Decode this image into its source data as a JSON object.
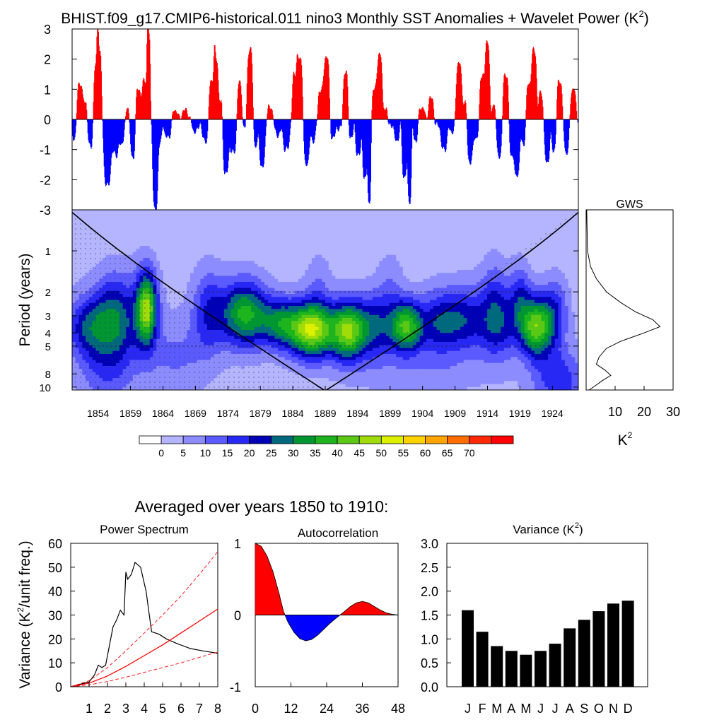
{
  "figure": {
    "title": "BHIST.f09_g17.CMIP6-historical.011 nino3 Monthly SST Anomalies + Wavelet Power (K",
    "title_sup": "2",
    "title_close": ")",
    "avg_heading": "Averaged over years 1850 to 1910:"
  },
  "chart_data": [
    {
      "id": "anomaly",
      "type": "area",
      "title": "",
      "ylim": [
        -3,
        3
      ],
      "yticks": [
        "3",
        "2",
        "1",
        "0",
        "-1",
        "-2",
        "-3"
      ],
      "colors": {
        "positive": "#ff0000",
        "negative": "#0000ff"
      },
      "x_start": 1850.0,
      "x_end": 1928.0,
      "events": [
        {
          "t": 1850.3,
          "a": -0.6,
          "w": 0.4
        },
        {
          "t": 1851.2,
          "a": 1.2,
          "w": 0.5
        },
        {
          "t": 1852.0,
          "a": 0.6,
          "w": 0.3
        },
        {
          "t": 1852.8,
          "a": -0.9,
          "w": 0.4
        },
        {
          "t": 1853.7,
          "a": 1.8,
          "w": 0.4
        },
        {
          "t": 1854.2,
          "a": 2.2,
          "w": 0.4
        },
        {
          "t": 1855.4,
          "a": -2.2,
          "w": 0.6
        },
        {
          "t": 1856.5,
          "a": -1.1,
          "w": 0.6
        },
        {
          "t": 1857.5,
          "a": -0.8,
          "w": 0.6
        },
        {
          "t": 1858.7,
          "a": 0.5,
          "w": 0.4
        },
        {
          "t": 1859.3,
          "a": -1.3,
          "w": 0.5
        },
        {
          "t": 1860.2,
          "a": 1.0,
          "w": 0.5
        },
        {
          "t": 1861.2,
          "a": 1.3,
          "w": 0.5
        },
        {
          "t": 1861.8,
          "a": 2.8,
          "w": 0.3
        },
        {
          "t": 1862.8,
          "a": -3.0,
          "w": 0.45
        },
        {
          "t": 1863.5,
          "a": -0.8,
          "w": 0.4
        },
        {
          "t": 1864.7,
          "a": -0.6,
          "w": 0.6
        },
        {
          "t": 1865.9,
          "a": 0.3,
          "w": 0.5
        },
        {
          "t": 1867.4,
          "a": 0.3,
          "w": 0.6
        },
        {
          "t": 1869.0,
          "a": -0.4,
          "w": 0.6
        },
        {
          "t": 1870.5,
          "a": -0.7,
          "w": 0.6
        },
        {
          "t": 1871.5,
          "a": 1.3,
          "w": 0.5
        },
        {
          "t": 1872.2,
          "a": 2.0,
          "w": 0.4
        },
        {
          "t": 1872.9,
          "a": 0.6,
          "w": 0.3
        },
        {
          "t": 1873.7,
          "a": -1.8,
          "w": 0.5
        },
        {
          "t": 1874.8,
          "a": -1.1,
          "w": 0.6
        },
        {
          "t": 1875.8,
          "a": 1.2,
          "w": 0.45
        },
        {
          "t": 1876.5,
          "a": -0.3,
          "w": 0.4
        },
        {
          "t": 1877.4,
          "a": 2.3,
          "w": 0.5
        },
        {
          "t": 1878.3,
          "a": -0.9,
          "w": 0.4
        },
        {
          "t": 1879.3,
          "a": -1.6,
          "w": 0.5
        },
        {
          "t": 1880.5,
          "a": 0.4,
          "w": 0.5
        },
        {
          "t": 1881.7,
          "a": -0.5,
          "w": 0.6
        },
        {
          "t": 1883.0,
          "a": -1.0,
          "w": 0.6
        },
        {
          "t": 1884.3,
          "a": 1.5,
          "w": 0.45
        },
        {
          "t": 1885.1,
          "a": 2.0,
          "w": 0.5
        },
        {
          "t": 1886.1,
          "a": -1.5,
          "w": 0.5
        },
        {
          "t": 1887.1,
          "a": -0.7,
          "w": 0.5
        },
        {
          "t": 1888.3,
          "a": 1.0,
          "w": 0.45
        },
        {
          "t": 1889.2,
          "a": 2.1,
          "w": 0.5
        },
        {
          "t": 1890.2,
          "a": -0.6,
          "w": 0.5
        },
        {
          "t": 1891.3,
          "a": -0.3,
          "w": 0.6
        },
        {
          "t": 1892.1,
          "a": 1.6,
          "w": 0.45
        },
        {
          "t": 1893.0,
          "a": -0.6,
          "w": 0.4
        },
        {
          "t": 1894.1,
          "a": -1.2,
          "w": 0.5
        },
        {
          "t": 1895.1,
          "a": -2.0,
          "w": 0.4
        },
        {
          "t": 1895.8,
          "a": -2.8,
          "w": 0.3
        },
        {
          "t": 1896.6,
          "a": 1.1,
          "w": 0.4
        },
        {
          "t": 1897.4,
          "a": 2.2,
          "w": 0.45
        },
        {
          "t": 1898.3,
          "a": 0.4,
          "w": 0.35
        },
        {
          "t": 1899.0,
          "a": -0.2,
          "w": 0.4
        },
        {
          "t": 1900.0,
          "a": -0.7,
          "w": 0.5
        },
        {
          "t": 1901.2,
          "a": -1.9,
          "w": 0.45
        },
        {
          "t": 1902.0,
          "a": -2.7,
          "w": 0.35
        },
        {
          "t": 1902.9,
          "a": -0.7,
          "w": 0.4
        },
        {
          "t": 1903.9,
          "a": 0.4,
          "w": 0.5
        },
        {
          "t": 1905.3,
          "a": 0.7,
          "w": 0.5
        },
        {
          "t": 1906.2,
          "a": -0.2,
          "w": 0.4
        },
        {
          "t": 1907.3,
          "a": -1.0,
          "w": 0.6
        },
        {
          "t": 1908.5,
          "a": -0.4,
          "w": 0.5
        },
        {
          "t": 1909.6,
          "a": 1.9,
          "w": 0.5
        },
        {
          "t": 1910.5,
          "a": 0.6,
          "w": 0.4
        },
        {
          "t": 1911.3,
          "a": -1.4,
          "w": 0.5
        },
        {
          "t": 1912.2,
          "a": -0.6,
          "w": 0.5
        },
        {
          "t": 1913.2,
          "a": 1.5,
          "w": 0.45
        },
        {
          "t": 1914.0,
          "a": 2.6,
          "w": 0.4
        },
        {
          "t": 1915.0,
          "a": 0.5,
          "w": 0.4
        },
        {
          "t": 1915.8,
          "a": -1.2,
          "w": 0.5
        },
        {
          "t": 1916.8,
          "a": 1.5,
          "w": 0.5
        },
        {
          "t": 1917.8,
          "a": -1.2,
          "w": 0.5
        },
        {
          "t": 1918.6,
          "a": -1.8,
          "w": 0.45
        },
        {
          "t": 1919.5,
          "a": -0.8,
          "w": 0.4
        },
        {
          "t": 1920.4,
          "a": 1.2,
          "w": 0.45
        },
        {
          "t": 1921.2,
          "a": 2.3,
          "w": 0.45
        },
        {
          "t": 1922.2,
          "a": 0.9,
          "w": 0.4
        },
        {
          "t": 1923.2,
          "a": -1.4,
          "w": 0.5
        },
        {
          "t": 1924.2,
          "a": -1.0,
          "w": 0.4
        },
        {
          "t": 1925.1,
          "a": 1.3,
          "w": 0.45
        },
        {
          "t": 1926.2,
          "a": -1.1,
          "w": 0.45
        },
        {
          "t": 1927.2,
          "a": 1.0,
          "w": 0.5
        }
      ]
    },
    {
      "id": "wavelet",
      "type": "heatmap",
      "ylabel": "Period (years)",
      "xticks": [
        "1854",
        "1859",
        "1864",
        "1869",
        "1874",
        "1879",
        "1884",
        "1889",
        "1894",
        "1899",
        "1904",
        "1909",
        "1914",
        "1919",
        "1924"
      ],
      "yticks": [
        {
          "period": 1,
          "label": "1"
        },
        {
          "period": 2,
          "label": "2"
        },
        {
          "period": 3,
          "label": "3"
        },
        {
          "period": 4,
          "label": "4"
        },
        {
          "period": 5,
          "label": "5"
        },
        {
          "period": 8,
          "label": "8"
        },
        {
          "period": 10,
          "label": "10"
        }
      ],
      "x_start": 1850.0,
      "x_end": 1928.0,
      "period_range": [
        0.5,
        10.5
      ],
      "dashed_periods": [
        2,
        5
      ],
      "blobs": [
        {
          "t": 1861.5,
          "p": 2.6,
          "st": 1.6,
          "sp": 0.22,
          "a": 40
        },
        {
          "t": 1856.0,
          "p": 2.9,
          "st": 3.0,
          "sp": 0.22,
          "a": 14
        },
        {
          "t": 1852.0,
          "p": 3.6,
          "st": 3.0,
          "sp": 0.18,
          "a": 17
        },
        {
          "t": 1858.0,
          "p": 3.3,
          "st": 4.0,
          "sp": 0.3,
          "a": 12
        },
        {
          "t": 1876.5,
          "p": 2.9,
          "st": 3.5,
          "sp": 0.2,
          "a": 34
        },
        {
          "t": 1871.0,
          "p": 2.8,
          "st": 2.5,
          "sp": 0.25,
          "a": 16
        },
        {
          "t": 1882.0,
          "p": 3.4,
          "st": 3.0,
          "sp": 0.15,
          "a": 25
        },
        {
          "t": 1887.0,
          "p": 3.8,
          "st": 3.5,
          "sp": 0.17,
          "a": 47
        },
        {
          "t": 1892.5,
          "p": 3.9,
          "st": 2.5,
          "sp": 0.18,
          "a": 38
        },
        {
          "t": 1896.5,
          "p": 3.6,
          "st": 3.0,
          "sp": 0.2,
          "a": 22
        },
        {
          "t": 1901.5,
          "p": 3.6,
          "st": 2.5,
          "sp": 0.16,
          "a": 37
        },
        {
          "t": 1906.5,
          "p": 3.4,
          "st": 3.0,
          "sp": 0.2,
          "a": 20
        },
        {
          "t": 1910.5,
          "p": 3.2,
          "st": 3.0,
          "sp": 0.2,
          "a": 18
        },
        {
          "t": 1915.5,
          "p": 3.4,
          "st": 3.0,
          "sp": 0.22,
          "a": 22
        },
        {
          "t": 1921.5,
          "p": 3.6,
          "st": 2.5,
          "sp": 0.18,
          "a": 40
        },
        {
          "t": 1919.0,
          "p": 2.2,
          "st": 1.6,
          "sp": 0.2,
          "a": 14
        },
        {
          "t": 1924.5,
          "p": 2.8,
          "st": 2.0,
          "sp": 0.2,
          "a": 14
        },
        {
          "t": 1855.0,
          "p": 6.5,
          "st": 4.0,
          "sp": 0.3,
          "a": 12
        },
        {
          "t": 1866.0,
          "p": 6.0,
          "st": 5.0,
          "sp": 0.25,
          "a": 8
        },
        {
          "t": 1904.0,
          "p": 8.0,
          "st": 10.0,
          "sp": 0.15,
          "a": 5
        },
        {
          "t": 1925.0,
          "p": 9.0,
          "st": 4.0,
          "sp": 0.2,
          "a": 16
        },
        {
          "t": 1888.0,
          "p": 1.8,
          "st": 2.0,
          "sp": 0.2,
          "a": 6
        },
        {
          "t": 1899.0,
          "p": 1.8,
          "st": 2.0,
          "sp": 0.2,
          "a": 6
        },
        {
          "t": 1915.0,
          "p": 1.8,
          "st": 2.0,
          "sp": 0.2,
          "a": 7
        }
      ]
    },
    {
      "id": "gws",
      "type": "line",
      "title": "GWS",
      "xlabel": "K",
      "xlabel_sup": "2",
      "xlim": [
        0,
        30
      ],
      "xticks": [
        "10",
        "20",
        "30"
      ],
      "points": [
        {
          "p": 0.5,
          "v": 0.2
        },
        {
          "p": 1.0,
          "v": 0.5
        },
        {
          "p": 1.3,
          "v": 1.5
        },
        {
          "p": 1.6,
          "v": 3.5
        },
        {
          "p": 2.0,
          "v": 7.0
        },
        {
          "p": 2.4,
          "v": 12.0
        },
        {
          "p": 2.8,
          "v": 17.0
        },
        {
          "p": 3.2,
          "v": 23.0
        },
        {
          "p": 3.6,
          "v": 25.5
        },
        {
          "p": 4.0,
          "v": 20.0
        },
        {
          "p": 4.6,
          "v": 12.0
        },
        {
          "p": 5.2,
          "v": 7.0
        },
        {
          "p": 6.0,
          "v": 4.5
        },
        {
          "p": 6.8,
          "v": 3.5
        },
        {
          "p": 7.5,
          "v": 6.5
        },
        {
          "p": 8.2,
          "v": 8.5
        },
        {
          "p": 9.0,
          "v": 5.5
        },
        {
          "p": 10.0,
          "v": 2.5
        },
        {
          "p": 10.5,
          "v": 1.0
        }
      ]
    },
    {
      "id": "colorbar",
      "type": "colorbar",
      "labels": [
        "0",
        "5",
        "10",
        "15",
        "20",
        "25",
        "30",
        "35",
        "40",
        "45",
        "50",
        "55",
        "60",
        "65",
        "70"
      ],
      "colors": [
        "#ffffff",
        "#b4b4ff",
        "#8c8cff",
        "#5a5aff",
        "#2828f5",
        "#0000b4",
        "#00697d",
        "#009632",
        "#1eb41e",
        "#5ac814",
        "#a0dc0a",
        "#dcf000",
        "#ffd200",
        "#ffa500",
        "#ff6e00",
        "#ff2800",
        "#ff0000"
      ]
    },
    {
      "id": "power_spectrum",
      "type": "line",
      "title": "Power Spectrum",
      "ylabel": "Variance (K",
      "ylabel_sup": "2",
      "ylabel_close": "/unit freq.)",
      "xlim": [
        0,
        8
      ],
      "ylim": [
        0,
        60
      ],
      "xticks": [
        "1",
        "2",
        "3",
        "4",
        "5",
        "6",
        "7",
        "8"
      ],
      "yticks": [
        "0",
        "10",
        "20",
        "30",
        "40",
        "50",
        "60"
      ],
      "series": [
        {
          "x": [
            0,
            0.5,
            1,
            1.3,
            1.5,
            1.7,
            1.9,
            2.1,
            2.3,
            2.5,
            2.7,
            2.9,
            3.0,
            3.1,
            3.3,
            3.5,
            3.8,
            4.1,
            4.4,
            4.8,
            5.2,
            5.8,
            6.5,
            7.2,
            8.0
          ],
          "y": [
            0,
            1,
            2,
            5,
            9,
            8,
            9,
            17,
            25,
            28,
            32,
            30,
            48,
            45,
            47,
            52,
            50,
            40,
            23,
            22,
            20,
            18,
            16,
            15,
            14
          ]
        },
        {
          "x": [
            0,
            1,
            2,
            3,
            4,
            5,
            6,
            7,
            8
          ],
          "y": [
            0,
            1.5,
            4.5,
            8.5,
            13,
            17.5,
            22.5,
            27.5,
            32.5
          ]
        },
        {
          "x": [
            0,
            1,
            2,
            3,
            4,
            5,
            6,
            7,
            8
          ],
          "y": [
            0,
            2.5,
            8,
            15,
            22.5,
            30,
            38,
            47,
            56.5
          ]
        },
        {
          "x": [
            0,
            1,
            2,
            3,
            4,
            5,
            6,
            7,
            8
          ],
          "y": [
            0,
            0.8,
            2.2,
            4,
            6,
            8,
            10,
            12.3,
            14.5
          ]
        }
      ],
      "colors": [
        "#000000",
        "#ff0000",
        "#ff0000",
        "#ff0000"
      ]
    },
    {
      "id": "autocorrelation",
      "type": "area",
      "title": "Autocorrelation",
      "xlim": [
        0,
        48
      ],
      "ylim": [
        -1,
        1
      ],
      "xticks": [
        "0",
        "12",
        "24",
        "36",
        "48"
      ],
      "yticks": [
        "1",
        "0",
        "-1"
      ],
      "x": [
        0,
        2,
        4,
        6,
        8,
        9.5,
        11,
        13,
        15,
        17,
        19,
        21,
        23,
        25,
        27,
        28.5,
        30,
        32,
        34,
        36,
        38,
        40,
        42,
        44,
        46,
        48
      ],
      "y": [
        1.0,
        0.96,
        0.82,
        0.6,
        0.3,
        0.05,
        -0.1,
        -0.24,
        -0.33,
        -0.36,
        -0.34,
        -0.28,
        -0.2,
        -0.12,
        -0.05,
        0.0,
        0.05,
        0.12,
        0.17,
        0.19,
        0.17,
        0.12,
        0.07,
        0.03,
        0.01,
        0.0
      ],
      "colors": {
        "positive": "#ff0000",
        "negative": "#0000ff"
      }
    },
    {
      "id": "variance",
      "type": "bar",
      "title": "Variance (K",
      "title_sup": "2",
      "title_close": ")",
      "categories": [
        "J",
        "F",
        "M",
        "A",
        "M",
        "J",
        "J",
        "A",
        "S",
        "O",
        "N",
        "D"
      ],
      "values": [
        1.6,
        1.15,
        0.85,
        0.75,
        0.67,
        0.75,
        0.9,
        1.22,
        1.4,
        1.58,
        1.74,
        1.8
      ],
      "ylim": [
        0,
        3.0
      ],
      "yticks": [
        "0.0",
        "0.5",
        "1.0",
        "1.5",
        "2.0",
        "2.5",
        "3.0"
      ],
      "colors": {
        "bar": "#000000"
      }
    }
  ]
}
